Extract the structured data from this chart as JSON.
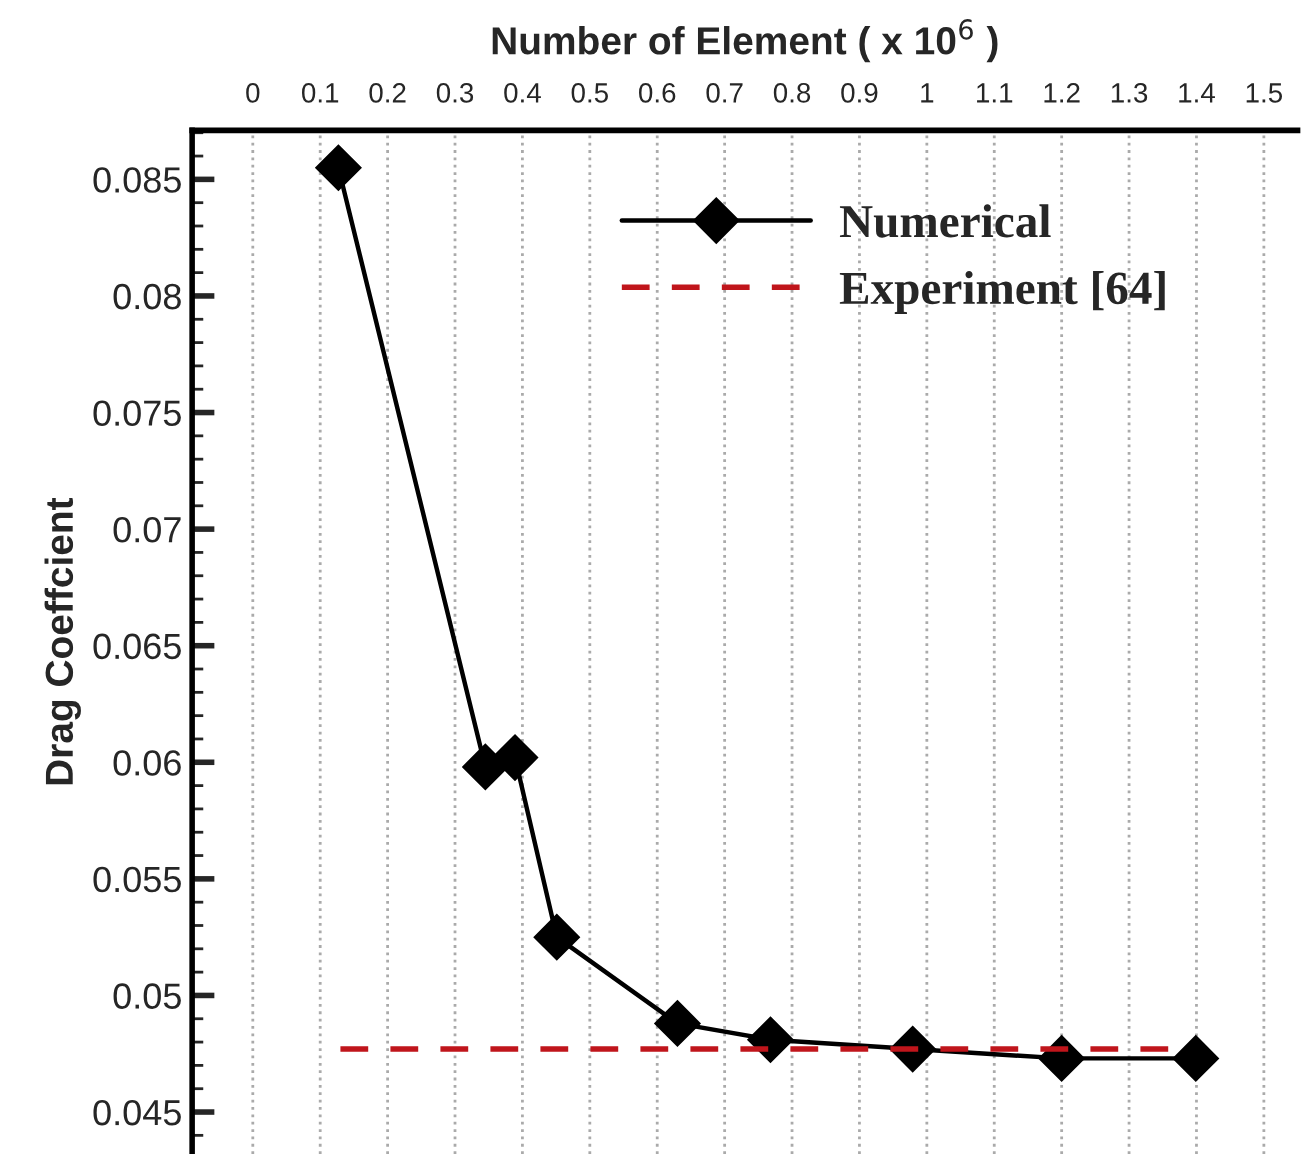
{
  "chart_data": {
    "type": "line",
    "xlabel": "Number of Element ( x 10$^{6}$ )",
    "ylabel": "Drag Coeffcient",
    "xlim": [
      -0.09,
      1.55
    ],
    "ylim": [
      0.0432,
      0.0871
    ],
    "xticks": [
      0,
      {
        "value": 0.1,
        "label": "0.1"
      },
      {
        "value": 0.2,
        "label": "0.2"
      },
      {
        "value": 0.3,
        "label": "0.3"
      },
      {
        "value": 0.4,
        "label": "0.4"
      },
      {
        "value": 0.5,
        "label": "0.5"
      },
      {
        "value": 0.6,
        "label": "0.6"
      },
      {
        "value": 0.7,
        "label": "0.7"
      },
      {
        "value": 0.8,
        "label": "0.8"
      },
      {
        "value": 0.9,
        "label": "0.9"
      },
      1,
      {
        "value": 1.1,
        "label": "1.1"
      },
      {
        "value": 1.2,
        "label": "1.2"
      },
      {
        "value": 1.3,
        "label": "1.3"
      },
      {
        "value": 1.4,
        "label": "1.4"
      },
      {
        "value": 1.5,
        "label": "1.5"
      }
    ],
    "yticks": [
      0.045,
      0.05,
      0.055,
      0.06,
      0.065,
      0.07,
      0.075,
      0.08,
      0.085
    ],
    "grid": "x",
    "legend": "top right",
    "series": [
      {
        "name": "Numerical",
        "color": "#000000",
        "marker": "diamond",
        "line_style": "solid",
        "x": [
          0.127,
          0.345,
          0.389,
          0.451,
          0.63,
          0.768,
          0.979,
          1.2,
          1.399
        ],
        "values": [
          0.0855,
          0.0598,
          0.0602,
          0.0525,
          0.0488,
          0.0481,
          0.0477,
          0.0473,
          0.0473
        ]
      },
      {
        "name": "Experiment [64]",
        "color": "#c0151b",
        "marker": "none",
        "line_style": "dashed",
        "x": [
          0.13,
          1.39
        ],
        "values": [
          0.0477,
          0.0477
        ]
      }
    ]
  }
}
